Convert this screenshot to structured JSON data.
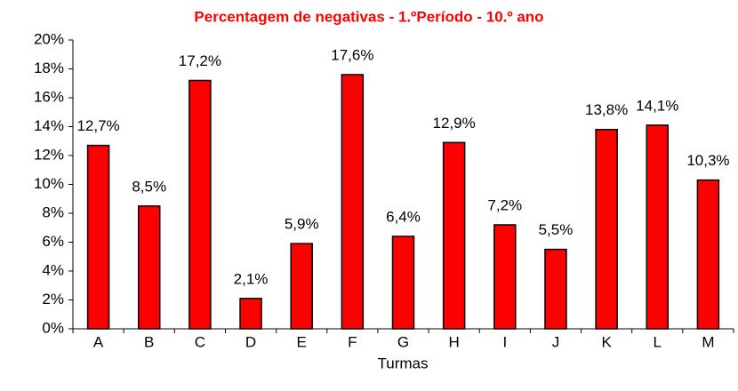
{
  "chart_data": {
    "type": "bar",
    "title": "Percentagem de negativas - 1.ºPeríodo - 10.º ano",
    "x_label": "Turmas",
    "categories": [
      "A",
      "B",
      "C",
      "D",
      "E",
      "F",
      "G",
      "H",
      "I",
      "J",
      "K",
      "L",
      "M"
    ],
    "values": [
      12.7,
      8.5,
      17.2,
      2.1,
      5.9,
      17.6,
      6.4,
      12.9,
      7.2,
      5.5,
      13.8,
      14.1,
      10.3
    ],
    "value_labels": [
      "12,7%",
      "8,5%",
      "17,2%",
      "2,1%",
      "5,9%",
      "17,6%",
      "6,4%",
      "12,9%",
      "7,2%",
      "5,5%",
      "13,8%",
      "14,1%",
      "10,3%"
    ],
    "color": "#ff0000",
    "ylim": [
      0,
      20
    ],
    "yticks": [
      {
        "value": 0,
        "label": "0%"
      },
      {
        "value": 2,
        "label": "2%"
      },
      {
        "value": 4,
        "label": "4%"
      },
      {
        "value": 6,
        "label": "6%"
      },
      {
        "value": 8,
        "label": "8%"
      },
      {
        "value": 10,
        "label": "10%"
      },
      {
        "value": 12,
        "label": "12%"
      },
      {
        "value": 14,
        "label": "14%"
      },
      {
        "value": 16,
        "label": "16%"
      },
      {
        "value": 18,
        "label": "18%"
      },
      {
        "value": 20,
        "label": "20%"
      }
    ],
    "grid": false
  }
}
